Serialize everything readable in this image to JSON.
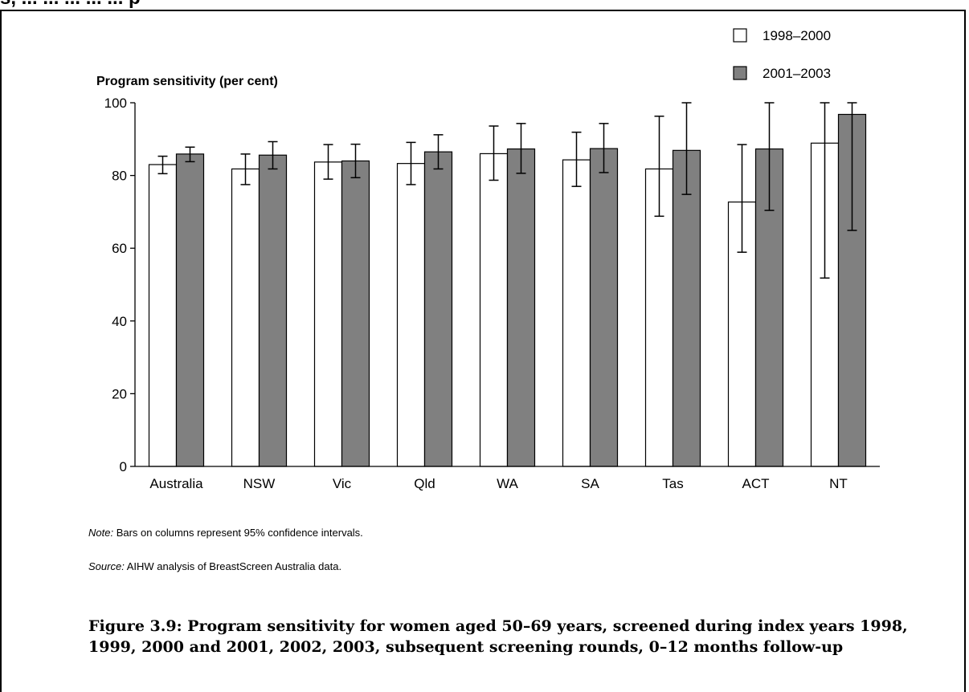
{
  "page": {
    "cut_heading": "s, ... ... ... ... ... p"
  },
  "chart_data": {
    "type": "bar",
    "ylabel": "Program sensitivity (per cent)",
    "ylim": [
      0,
      100
    ],
    "yticks": [
      0,
      20,
      40,
      60,
      80,
      100
    ],
    "grid": false,
    "legend_position": "top-right",
    "categories": [
      "Australia",
      "NSW",
      "Vic",
      "Qld",
      "WA",
      "SA",
      "Tas",
      "ACT",
      "NT"
    ],
    "series": [
      {
        "name": "1998–2000",
        "color": "#ffffff",
        "values": [
          83.0,
          81.8,
          83.7,
          83.3,
          86.0,
          84.3,
          81.8,
          72.7,
          88.9
        ],
        "ci_low": [
          80.5,
          77.5,
          79.0,
          77.5,
          78.7,
          77.0,
          68.8,
          58.9,
          51.8
        ],
        "ci_high": [
          85.3,
          85.9,
          88.5,
          89.1,
          93.6,
          91.9,
          96.3,
          88.5,
          100.0
        ]
      },
      {
        "name": "2001–2003",
        "color": "#808080",
        "values": [
          85.9,
          85.6,
          84.0,
          86.5,
          87.3,
          87.4,
          86.9,
          87.3,
          96.8
        ],
        "ci_low": [
          83.8,
          81.8,
          79.4,
          81.8,
          80.6,
          80.8,
          74.8,
          70.4,
          64.9
        ],
        "ci_high": [
          87.8,
          89.3,
          88.6,
          91.2,
          94.3,
          94.3,
          100.0,
          100.0,
          100.0
        ]
      }
    ]
  },
  "notes": {
    "note_label": "Note:",
    "note_text": " Bars on columns represent 95% confidence intervals.",
    "source_label": "Source:",
    "source_text": " AIHW analysis of BreastScreen Australia data."
  },
  "caption": "Figure 3.9: Program sensitivity for women aged 50–69 years, screened during index years 1998, 1999, 2000 and 2001, 2002, 2003, subsequent screening rounds, 0–12 months follow-up"
}
